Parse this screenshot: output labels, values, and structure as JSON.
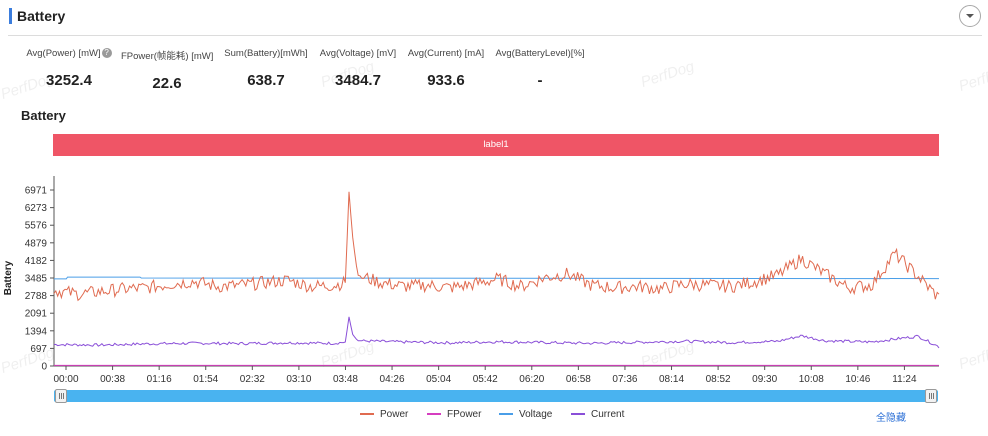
{
  "header": {
    "title": "Battery"
  },
  "stats": [
    {
      "label": "Avg(Power) [mW]",
      "value": "3252.4",
      "help": true
    },
    {
      "label": "FPower(帧能耗) [mW]",
      "value": "22.6"
    },
    {
      "label": "Sum(Battery)[mWh]",
      "value": "638.7"
    },
    {
      "label": "Avg(Voltage) [mV]",
      "value": "3484.7"
    },
    {
      "label": "Avg(Current) [mA]",
      "value": "933.6"
    },
    {
      "label": "Avg(BatteryLevel)[%]",
      "value": "-"
    }
  ],
  "watermark": "PerfDog",
  "chart": {
    "title": "Battery",
    "label_band": "label1",
    "toggle_all": "全隐藏"
  },
  "chart_data": {
    "type": "line",
    "title": "Battery",
    "ylabel": "Battery",
    "xlabel": "",
    "y_ticks": [
      0,
      697,
      1394,
      2091,
      2788,
      3485,
      4182,
      4879,
      5576,
      6273,
      6971
    ],
    "x_ticks": [
      "00:00",
      "00:38",
      "01:16",
      "01:54",
      "02:32",
      "03:10",
      "03:48",
      "04:26",
      "05:04",
      "05:42",
      "06:20",
      "06:58",
      "07:36",
      "08:14",
      "08:52",
      "09:30",
      "10:08",
      "10:46",
      "11:24"
    ],
    "ylim": [
      0,
      7200
    ],
    "x_range_seconds": [
      0,
      720
    ],
    "grid": false,
    "legend_position": "bottom",
    "colors": {
      "Power": "#e06b50",
      "FPower": "#d63ec0",
      "Voltage": "#4a9ee8",
      "Current": "#8a4fd8"
    },
    "series": [
      {
        "name": "Power",
        "x": [
          0,
          20,
          38,
          57,
          76,
          95,
          114,
          133,
          152,
          171,
          190,
          209,
          228,
          237,
          240,
          243,
          247,
          266,
          285,
          304,
          323,
          342,
          361,
          380,
          399,
          418,
          437,
          456,
          475,
          494,
          513,
          532,
          551,
          570,
          589,
          608,
          627,
          646,
          665,
          684,
          703,
          720
        ],
        "y": [
          3000,
          2850,
          2950,
          3050,
          3100,
          3250,
          3350,
          3150,
          3200,
          3300,
          3400,
          3150,
          3200,
          3300,
          6900,
          5100,
          3600,
          3300,
          3150,
          3200,
          3100,
          3250,
          3450,
          3150,
          3500,
          3650,
          3200,
          3100,
          3150,
          3050,
          3250,
          3200,
          3150,
          3350,
          3600,
          4250,
          3650,
          3100,
          3200,
          4450,
          3550,
          2700
        ]
      },
      {
        "name": "FPower",
        "x": [
          0,
          720
        ],
        "y": [
          22,
          23
        ]
      },
      {
        "name": "Voltage",
        "x": [
          0,
          10,
          11,
          70,
          71,
          720
        ],
        "y": [
          3450,
          3450,
          3520,
          3520,
          3485,
          3460
        ]
      },
      {
        "name": "Current",
        "x": [
          0,
          38,
          76,
          114,
          152,
          190,
          228,
          237,
          240,
          243,
          247,
          285,
          323,
          361,
          399,
          437,
          475,
          513,
          551,
          589,
          608,
          627,
          665,
          703,
          720
        ],
        "y": [
          850,
          830,
          880,
          900,
          890,
          920,
          900,
          950,
          1950,
          1250,
          1000,
          950,
          920,
          960,
          930,
          900,
          940,
          980,
          930,
          980,
          1200,
          1000,
          950,
          1180,
          760
        ]
      }
    ]
  }
}
